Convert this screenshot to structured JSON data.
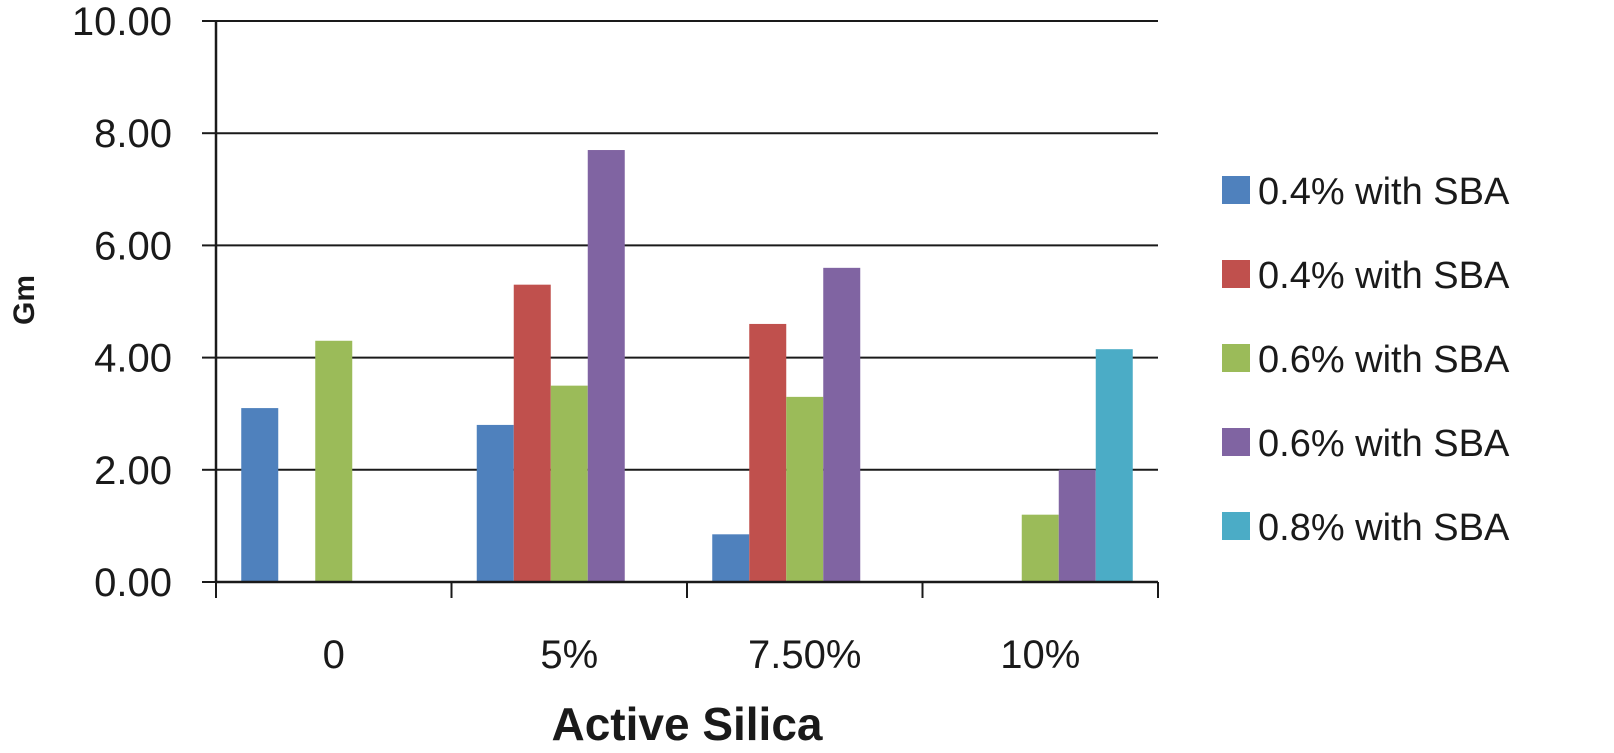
{
  "chart_data": {
    "type": "bar",
    "xlabel": "Active Silica",
    "ylabel": "Gm",
    "categories": [
      "0",
      "5%",
      "7.50%",
      "10%"
    ],
    "ylim": [
      0,
      10
    ],
    "yticks": [
      "0.00",
      "2.00",
      "4.00",
      "6.00",
      "8.00",
      "10.00"
    ],
    "grid": true,
    "legend_position": "right",
    "series": [
      {
        "name": "0.4% with SBA",
        "color": "#4f81bd",
        "values": [
          3.1,
          2.8,
          0.85,
          null
        ]
      },
      {
        "name": "0.4% with SBA",
        "color": "#c0504d",
        "values": [
          null,
          5.3,
          4.6,
          null
        ]
      },
      {
        "name": "0.6% with SBA",
        "color": "#9bbb59",
        "values": [
          4.3,
          3.5,
          3.3,
          1.2
        ]
      },
      {
        "name": "0.6% with SBA",
        "color": "#8064a2",
        "values": [
          null,
          7.7,
          5.6,
          2.0
        ]
      },
      {
        "name": "0.8% with SBA",
        "color": "#4bacc6",
        "values": [
          null,
          null,
          null,
          4.15
        ]
      }
    ]
  }
}
